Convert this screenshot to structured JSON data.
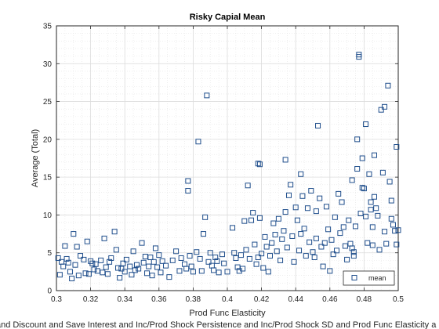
{
  "chart_data": {
    "type": "scatter",
    "title": "Risky Capial Mean",
    "xlabel": "Prod Func Elasticity",
    "ylabel": "Average (Total)",
    "footer_text": "and Discount and Save Interest and Inc/Prod Shock Persistence and Inc/Prod Shock SD and Prod Func Elasticity a",
    "xlim": [
      0.3,
      0.5
    ],
    "ylim": [
      0,
      35
    ],
    "xticks": [
      0.3,
      0.32,
      0.34,
      0.36,
      0.38,
      0.4,
      0.42,
      0.44,
      0.46,
      0.48,
      0.5
    ],
    "xtick_labels": [
      "0.3",
      "0.32",
      "0.34",
      "0.36",
      "0.38",
      "0.4",
      "0.42",
      "0.44",
      "0.46",
      "0.48",
      "0.5"
    ],
    "yticks": [
      0,
      5,
      10,
      15,
      20,
      25,
      30,
      35
    ],
    "ytick_labels": [
      "0",
      "5",
      "10",
      "15",
      "20",
      "25",
      "30",
      "35"
    ],
    "grid": true,
    "minor_grid": true,
    "legend_position": "bottom-right",
    "colors": {
      "marker": "#1f4e8c",
      "grid": "#e3e3e3",
      "axis": "#262626"
    },
    "series": [
      {
        "name": "mean",
        "marker": "square",
        "points": [
          [
            0.301,
            4.3
          ],
          [
            0.302,
            2.1
          ],
          [
            0.303,
            3.8
          ],
          [
            0.304,
            3.2
          ],
          [
            0.305,
            5.9
          ],
          [
            0.306,
            4.2
          ],
          [
            0.307,
            3.7
          ],
          [
            0.308,
            2.5
          ],
          [
            0.309,
            1.6
          ],
          [
            0.31,
            7.5
          ],
          [
            0.311,
            3.4
          ],
          [
            0.312,
            5.8
          ],
          [
            0.313,
            2.0
          ],
          [
            0.314,
            4.6
          ],
          [
            0.316,
            4.1
          ],
          [
            0.317,
            2.3
          ],
          [
            0.318,
            6.5
          ],
          [
            0.319,
            2.2
          ],
          [
            0.32,
            3.9
          ],
          [
            0.321,
            3.6
          ],
          [
            0.322,
            2.8
          ],
          [
            0.323,
            3.5
          ],
          [
            0.324,
            2.6
          ],
          [
            0.326,
            4.0
          ],
          [
            0.327,
            2.4
          ],
          [
            0.328,
            6.9
          ],
          [
            0.329,
            3.1
          ],
          [
            0.33,
            2.2
          ],
          [
            0.331,
            3.8
          ],
          [
            0.332,
            4.3
          ],
          [
            0.334,
            7.8
          ],
          [
            0.335,
            5.4
          ],
          [
            0.336,
            3.0
          ],
          [
            0.337,
            1.7
          ],
          [
            0.338,
            2.9
          ],
          [
            0.339,
            3.6
          ],
          [
            0.34,
            2.5
          ],
          [
            0.341,
            4.1
          ],
          [
            0.343,
            3.2
          ],
          [
            0.344,
            2.1
          ],
          [
            0.345,
            5.2
          ],
          [
            0.346,
            2.7
          ],
          [
            0.347,
            3.4
          ],
          [
            0.348,
            2.9
          ],
          [
            0.35,
            6.3
          ],
          [
            0.351,
            3.7
          ],
          [
            0.352,
            4.5
          ],
          [
            0.353,
            2.3
          ],
          [
            0.354,
            3.2
          ],
          [
            0.355,
            4.4
          ],
          [
            0.356,
            2.0
          ],
          [
            0.357,
            3.8
          ],
          [
            0.358,
            5.6
          ],
          [
            0.359,
            3.1
          ],
          [
            0.36,
            4.7
          ],
          [
            0.361,
            2.4
          ],
          [
            0.362,
            3.9
          ],
          [
            0.364,
            3.3
          ],
          [
            0.366,
            1.8
          ],
          [
            0.368,
            4.0
          ],
          [
            0.37,
            5.2
          ],
          [
            0.372,
            2.6
          ],
          [
            0.373,
            4.3
          ],
          [
            0.375,
            3.5
          ],
          [
            0.376,
            2.9
          ],
          [
            0.377,
            14.5
          ],
          [
            0.377,
            13.2
          ],
          [
            0.378,
            4.6
          ],
          [
            0.379,
            3.2
          ],
          [
            0.38,
            2.5
          ],
          [
            0.382,
            5.1
          ],
          [
            0.383,
            19.7
          ],
          [
            0.384,
            4.2
          ],
          [
            0.385,
            2.6
          ],
          [
            0.386,
            7.5
          ],
          [
            0.387,
            9.7
          ],
          [
            0.388,
            25.8
          ],
          [
            0.389,
            3.8
          ],
          [
            0.39,
            5.0
          ],
          [
            0.391,
            3.3
          ],
          [
            0.392,
            2.7
          ],
          [
            0.393,
            4.4
          ],
          [
            0.394,
            3.9
          ],
          [
            0.395,
            2.4
          ],
          [
            0.397,
            4.8
          ],
          [
            0.398,
            3.6
          ],
          [
            0.4,
            2.5
          ],
          [
            0.403,
            8.3
          ],
          [
            0.404,
            5.0
          ],
          [
            0.405,
            4.3
          ],
          [
            0.406,
            3.1
          ],
          [
            0.407,
            2.6
          ],
          [
            0.408,
            4.7
          ],
          [
            0.409,
            2.9
          ],
          [
            0.41,
            9.2
          ],
          [
            0.411,
            5.4
          ],
          [
            0.412,
            13.9
          ],
          [
            0.413,
            4.2
          ],
          [
            0.414,
            9.3
          ],
          [
            0.415,
            10.3
          ],
          [
            0.416,
            6.1
          ],
          [
            0.417,
            3.5
          ],
          [
            0.418,
            16.8
          ],
          [
            0.418,
            4.4
          ],
          [
            0.419,
            16.7
          ],
          [
            0.419,
            9.6
          ],
          [
            0.42,
            4.9
          ],
          [
            0.421,
            3.0
          ],
          [
            0.422,
            7.1
          ],
          [
            0.423,
            5.8
          ],
          [
            0.424,
            2.5
          ],
          [
            0.425,
            4.6
          ],
          [
            0.426,
            6.3
          ],
          [
            0.427,
            8.9
          ],
          [
            0.428,
            7.4
          ],
          [
            0.429,
            5.2
          ],
          [
            0.43,
            9.5
          ],
          [
            0.431,
            4.0
          ],
          [
            0.432,
            6.8
          ],
          [
            0.433,
            7.9
          ],
          [
            0.434,
            17.3
          ],
          [
            0.434,
            10.4
          ],
          [
            0.435,
            5.7
          ],
          [
            0.436,
            12.6
          ],
          [
            0.437,
            14.0
          ],
          [
            0.438,
            7.2
          ],
          [
            0.439,
            3.8
          ],
          [
            0.44,
            11.0
          ],
          [
            0.441,
            9.3
          ],
          [
            0.442,
            5.3
          ],
          [
            0.443,
            15.4
          ],
          [
            0.443,
            7.5
          ],
          [
            0.444,
            12.5
          ],
          [
            0.445,
            8.2
          ],
          [
            0.446,
            4.6
          ],
          [
            0.447,
            10.9
          ],
          [
            0.448,
            6.4
          ],
          [
            0.449,
            13.2
          ],
          [
            0.45,
            5.1
          ],
          [
            0.451,
            4.4
          ],
          [
            0.452,
            10.5
          ],
          [
            0.452,
            6.9
          ],
          [
            0.453,
            21.8
          ],
          [
            0.454,
            12.2
          ],
          [
            0.455,
            5.8
          ],
          [
            0.456,
            3.2
          ],
          [
            0.457,
            6.3
          ],
          [
            0.458,
            11.1
          ],
          [
            0.459,
            8.1
          ],
          [
            0.46,
            2.6
          ],
          [
            0.461,
            6.7
          ],
          [
            0.462,
            4.8
          ],
          [
            0.463,
            9.7
          ],
          [
            0.464,
            5.3
          ],
          [
            0.465,
            12.8
          ],
          [
            0.466,
            7.6
          ],
          [
            0.467,
            11.7
          ],
          [
            0.468,
            8.4
          ],
          [
            0.469,
            5.9
          ],
          [
            0.47,
            4.1
          ],
          [
            0.471,
            9.3
          ],
          [
            0.472,
            6.2
          ],
          [
            0.473,
            14.6
          ],
          [
            0.473,
            5.6
          ],
          [
            0.474,
            5.1
          ],
          [
            0.474,
            4.6
          ],
          [
            0.475,
            8.5
          ],
          [
            0.476,
            20.0
          ],
          [
            0.476,
            16.1
          ],
          [
            0.477,
            31.2
          ],
          [
            0.477,
            30.9
          ],
          [
            0.478,
            10.2
          ],
          [
            0.479,
            17.5
          ],
          [
            0.479,
            13.6
          ],
          [
            0.48,
            13.5
          ],
          [
            0.481,
            22.0
          ],
          [
            0.481,
            9.8
          ],
          [
            0.482,
            6.3
          ],
          [
            0.483,
            15.4
          ],
          [
            0.484,
            11.7
          ],
          [
            0.484,
            10.7
          ],
          [
            0.485,
            8.4
          ],
          [
            0.485,
            6.0
          ],
          [
            0.486,
            17.9
          ],
          [
            0.486,
            12.4
          ],
          [
            0.487,
            10.9
          ],
          [
            0.488,
            9.9
          ],
          [
            0.489,
            5.4
          ],
          [
            0.49,
            23.9
          ],
          [
            0.491,
            15.6
          ],
          [
            0.492,
            24.3
          ],
          [
            0.492,
            7.8
          ],
          [
            0.493,
            6.2
          ],
          [
            0.494,
            27.1
          ],
          [
            0.495,
            14.4
          ],
          [
            0.496,
            11.9
          ],
          [
            0.496,
            9.5
          ],
          [
            0.497,
            8.7
          ],
          [
            0.498,
            7.9
          ],
          [
            0.499,
            19.0
          ],
          [
            0.499,
            6.1
          ],
          [
            0.5,
            8.0
          ]
        ]
      }
    ]
  }
}
